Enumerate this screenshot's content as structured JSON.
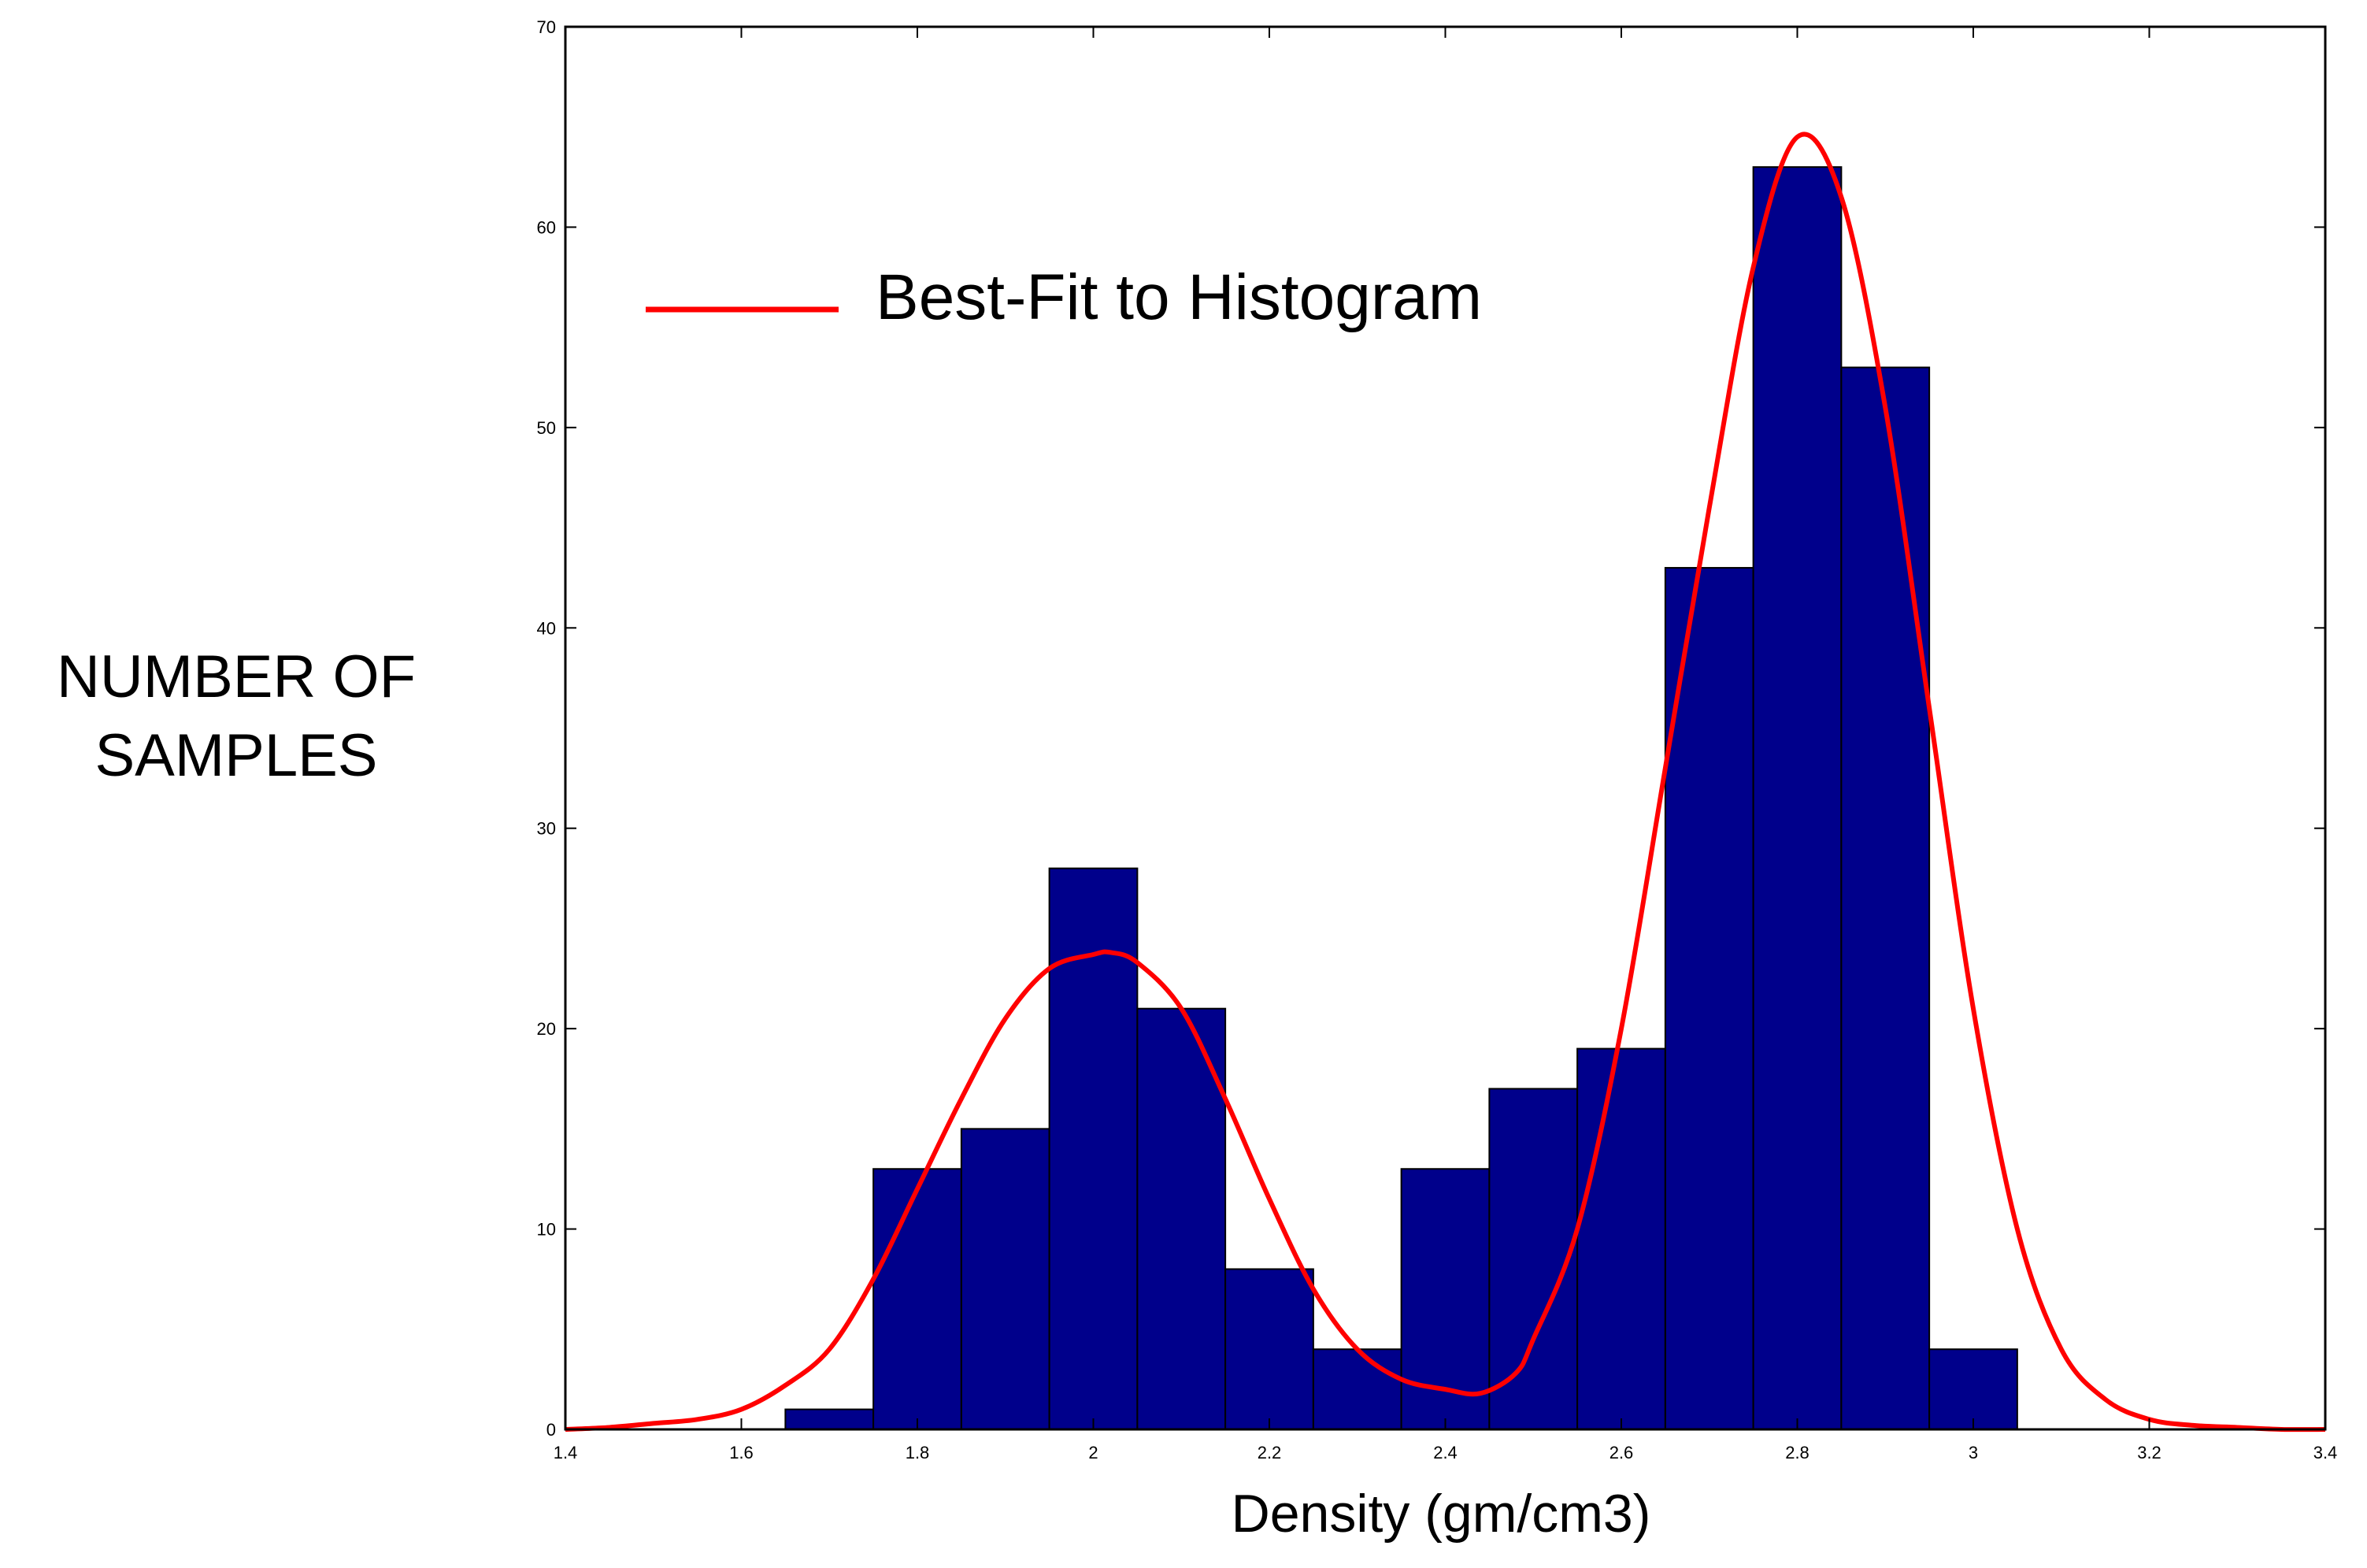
{
  "chart_data": {
    "type": "bar",
    "title": "",
    "xlabel": "Density (gm/cm3)",
    "ylabel_lines": [
      "NUMBER OF",
      "SAMPLES"
    ],
    "xlim": [
      1.4,
      3.4
    ],
    "ylim": [
      0,
      70
    ],
    "xticks": [
      1.4,
      1.6,
      1.8,
      2,
      2.2,
      2.4,
      2.6,
      2.8,
      3,
      3.2,
      3.4
    ],
    "xtick_labels": [
      "1.4",
      "1.6",
      "1.8",
      "2",
      "2.2",
      "2.4",
      "2.6",
      "2.8",
      "3",
      "3.2",
      "3.4"
    ],
    "yticks": [
      0,
      10,
      20,
      30,
      40,
      50,
      60,
      70
    ],
    "ytick_labels": [
      "0",
      "10",
      "20",
      "30",
      "40",
      "50",
      "60",
      "70"
    ],
    "bar_color": "#00008b",
    "bin_width": 0.1,
    "categories": [
      1.7,
      1.8,
      1.9,
      2.0,
      2.1,
      2.2,
      2.3,
      2.4,
      2.5,
      2.6,
      2.7,
      2.8,
      2.9,
      3.0
    ],
    "values": [
      1,
      13,
      15,
      28,
      21,
      8,
      4,
      13,
      17,
      19,
      43,
      63,
      53,
      4
    ],
    "fit": {
      "name": "Best-Fit to Histogram",
      "color": "#ff0000",
      "x": [
        1.4,
        1.45,
        1.5,
        1.55,
        1.6,
        1.65,
        1.7,
        1.75,
        1.8,
        1.85,
        1.9,
        1.95,
        2.0,
        2.02,
        2.05,
        2.1,
        2.15,
        2.2,
        2.25,
        2.3,
        2.35,
        2.4,
        2.44,
        2.48,
        2.5,
        2.55,
        2.6,
        2.65,
        2.7,
        2.75,
        2.8,
        2.85,
        2.9,
        2.95,
        3.0,
        3.05,
        3.1,
        3.15,
        3.2,
        3.25,
        3.3,
        3.35,
        3.4
      ],
      "y": [
        0.0,
        0.1,
        0.3,
        0.5,
        1.0,
        2.2,
        4.0,
        7.5,
        12.0,
        16.5,
        20.5,
        23.0,
        23.7,
        23.8,
        23.3,
        21.0,
        16.5,
        11.5,
        7.0,
        4.0,
        2.5,
        2.0,
        1.8,
        2.8,
        4.5,
        10.0,
        20.0,
        33.0,
        46.0,
        58.0,
        64.5,
        61.5,
        51.0,
        36.0,
        21.0,
        10.0,
        4.0,
        1.5,
        0.5,
        0.2,
        0.1,
        0.0,
        0.0
      ]
    },
    "grid": false,
    "legend": "top-left"
  }
}
